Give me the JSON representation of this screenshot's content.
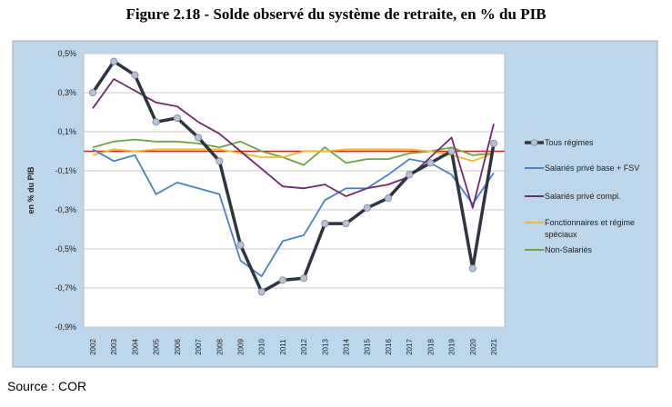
{
  "chart_data": {
    "type": "line",
    "title": "Figure 2.18 - Solde observé du système de retraite, en % du PIB",
    "xlabel": "",
    "ylabel": "en % du PIB",
    "ylim": [
      -0.9,
      0.5
    ],
    "yticks": [
      0.5,
      0.3,
      0.1,
      -0.1,
      -0.3,
      -0.5,
      -0.7,
      -0.9
    ],
    "ytick_labels": [
      "0,5%",
      "0,3%",
      "0,1%",
      "-0,1%",
      "-0,3%",
      "-0,5%",
      "-0,7%",
      "-0,9%"
    ],
    "grid": true,
    "legend_position": "right",
    "reference_line": 0,
    "x": [
      "2002",
      "2003",
      "2004",
      "2005",
      "2006",
      "2007",
      "2008",
      "2009",
      "2010",
      "2011",
      "2012",
      "2013",
      "2014",
      "2015",
      "2016",
      "2017",
      "2018",
      "2019",
      "2020",
      "2021"
    ],
    "series": [
      {
        "name": "Tous régimes",
        "color": "#2e3440",
        "markers": true,
        "values": [
          0.3,
          0.46,
          0.39,
          0.15,
          0.17,
          0.07,
          -0.05,
          -0.48,
          -0.72,
          -0.66,
          -0.65,
          -0.37,
          -0.37,
          -0.29,
          -0.24,
          -0.12,
          -0.06,
          0.0,
          -0.6,
          0.04
        ]
      },
      {
        "name": "Salariés  privé base + FSV",
        "color": "#4a7fd4",
        "markers": false,
        "values": [
          0.01,
          -0.05,
          -0.02,
          -0.22,
          -0.16,
          -0.19,
          -0.22,
          -0.56,
          -0.64,
          -0.46,
          -0.43,
          -0.25,
          -0.19,
          -0.19,
          -0.12,
          -0.04,
          -0.06,
          -0.12,
          -0.27,
          -0.11
        ]
      },
      {
        "name": "Salariés  privé compl.",
        "color": "#6e2a6e",
        "markers": false,
        "values": [
          0.22,
          0.37,
          0.31,
          0.25,
          0.23,
          0.15,
          0.09,
          0.0,
          -0.09,
          -0.18,
          -0.19,
          -0.17,
          -0.23,
          -0.19,
          -0.17,
          -0.13,
          -0.03,
          0.07,
          -0.29,
          0.14
        ]
      },
      {
        "name": "Fonctionnaires et régime spéciaux",
        "color": "#f5b829",
        "markers": false,
        "values": [
          -0.02,
          0.01,
          0.0,
          0.01,
          0.01,
          0.01,
          0.01,
          -0.01,
          -0.03,
          -0.03,
          0.0,
          0.0,
          0.01,
          0.01,
          0.01,
          0.01,
          0.0,
          -0.02,
          -0.05,
          -0.01
        ]
      },
      {
        "name": "Non-Salariés",
        "color": "#6aaa3a",
        "markers": false,
        "values": [
          0.02,
          0.05,
          0.06,
          0.05,
          0.05,
          0.04,
          0.02,
          0.05,
          0.0,
          -0.03,
          -0.07,
          0.02,
          -0.06,
          -0.04,
          -0.04,
          -0.01,
          0.0,
          0.02,
          -0.02,
          -0.01
        ]
      }
    ]
  },
  "source": "Source : COR",
  "colors": {
    "panel": "#bcd6ec",
    "zero_line": "#e02020",
    "grid": "#c8c8c8"
  }
}
